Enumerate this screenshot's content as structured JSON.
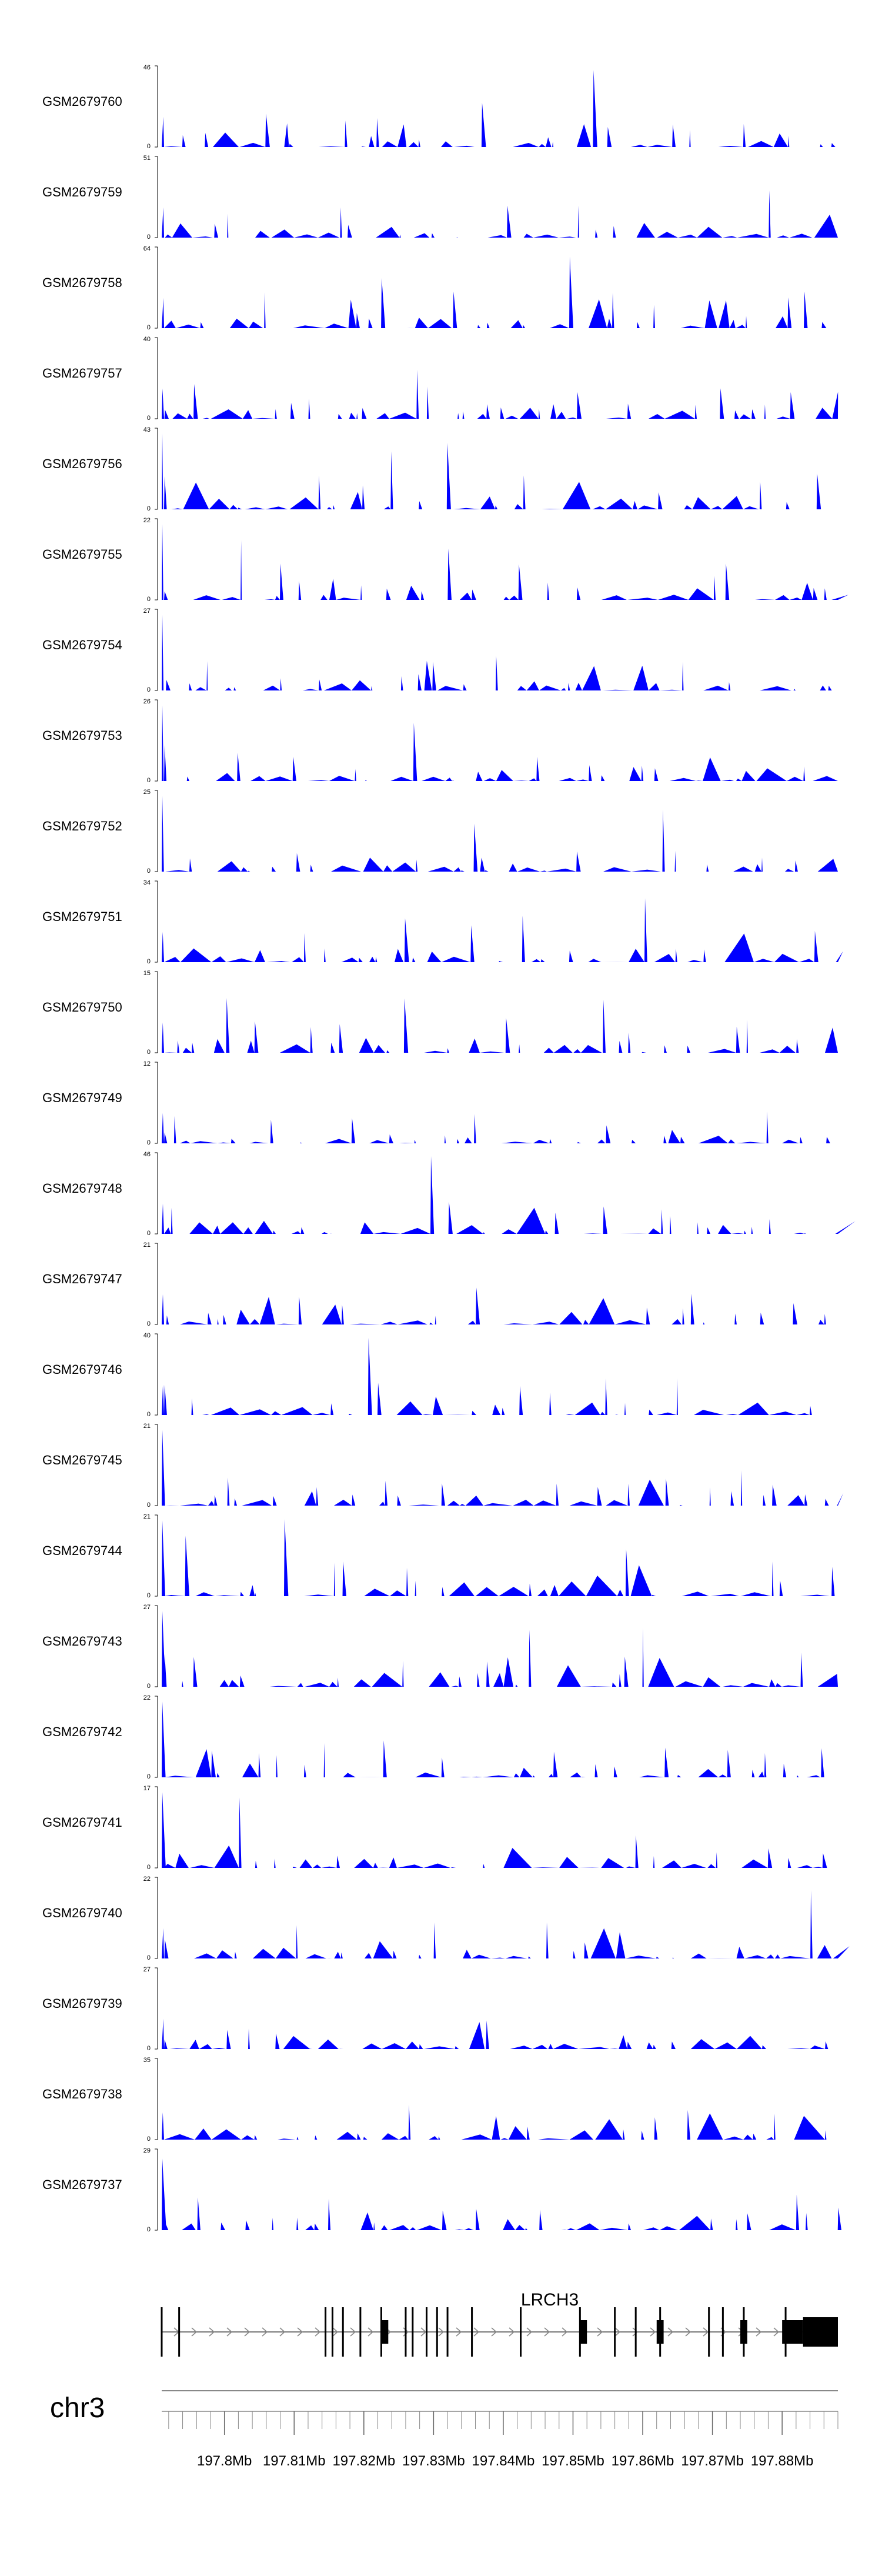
{
  "chart_data": {
    "type": "area",
    "description_free": true,
    "fill_color": "#0000ff",
    "axis_color": "#000000",
    "chromosome": "chr3",
    "x_range_mb": [
      197.791,
      197.888
    ],
    "x_ticks": [
      "197.8Mb",
      "197.81Mb",
      "197.82Mb",
      "197.83Mb",
      "197.84Mb",
      "197.85Mb",
      "197.86Mb",
      "197.87Mb",
      "197.88Mb"
    ],
    "gene": {
      "name": "LRCH3",
      "start_mb": 197.791,
      "end_mb": 197.888,
      "exons_mb": [
        197.791,
        197.7935,
        197.8145,
        197.8155,
        197.817,
        197.8195,
        197.8225,
        197.826,
        197.827,
        197.829,
        197.8305,
        197.832,
        197.8355,
        197.8425,
        197.851,
        197.856,
        197.859,
        197.8625,
        197.8695,
        197.8715,
        197.8745,
        197.8805
      ],
      "thick_exons": [
        [
          197.8225,
          197.8235
        ],
        [
          197.851,
          197.852
        ],
        [
          197.862,
          197.863
        ],
        [
          197.874,
          197.875
        ],
        [
          197.88,
          197.883
        ],
        [
          197.883,
          197.888
        ]
      ]
    },
    "series": [
      {
        "name": "GSM2679760",
        "ymax": "46",
        "seed": 60
      },
      {
        "name": "GSM2679759",
        "ymax": "51",
        "seed": 59
      },
      {
        "name": "GSM2679758",
        "ymax": "64",
        "seed": 58
      },
      {
        "name": "GSM2679757",
        "ymax": "40",
        "seed": 57
      },
      {
        "name": "GSM2679756",
        "ymax": "43",
        "seed": 56
      },
      {
        "name": "GSM2679755",
        "ymax": "22",
        "seed": 55
      },
      {
        "name": "GSM2679754",
        "ymax": "27",
        "seed": 54
      },
      {
        "name": "GSM2679753",
        "ymax": "26",
        "seed": 53
      },
      {
        "name": "GSM2679752",
        "ymax": "25",
        "seed": 52
      },
      {
        "name": "GSM2679751",
        "ymax": "34",
        "seed": 51
      },
      {
        "name": "GSM2679750",
        "ymax": "15",
        "seed": 50
      },
      {
        "name": "GSM2679749",
        "ymax": "12",
        "seed": 49
      },
      {
        "name": "GSM2679748",
        "ymax": "46",
        "seed": 48
      },
      {
        "name": "GSM2679747",
        "ymax": "21",
        "seed": 47
      },
      {
        "name": "GSM2679746",
        "ymax": "40",
        "seed": 46
      },
      {
        "name": "GSM2679745",
        "ymax": "21",
        "seed": 45
      },
      {
        "name": "GSM2679744",
        "ymax": "21",
        "seed": 44
      },
      {
        "name": "GSM2679743",
        "ymax": "27",
        "seed": 43
      },
      {
        "name": "GSM2679742",
        "ymax": "22",
        "seed": 42
      },
      {
        "name": "GSM2679741",
        "ymax": "17",
        "seed": 41
      },
      {
        "name": "GSM2679740",
        "ymax": "22",
        "seed": 40
      },
      {
        "name": "GSM2679739",
        "ymax": "27",
        "seed": 39
      },
      {
        "name": "GSM2679738",
        "ymax": "35",
        "seed": 38
      },
      {
        "name": "GSM2679737",
        "ymax": "29",
        "seed": 37
      }
    ],
    "ymin_label": "0"
  }
}
